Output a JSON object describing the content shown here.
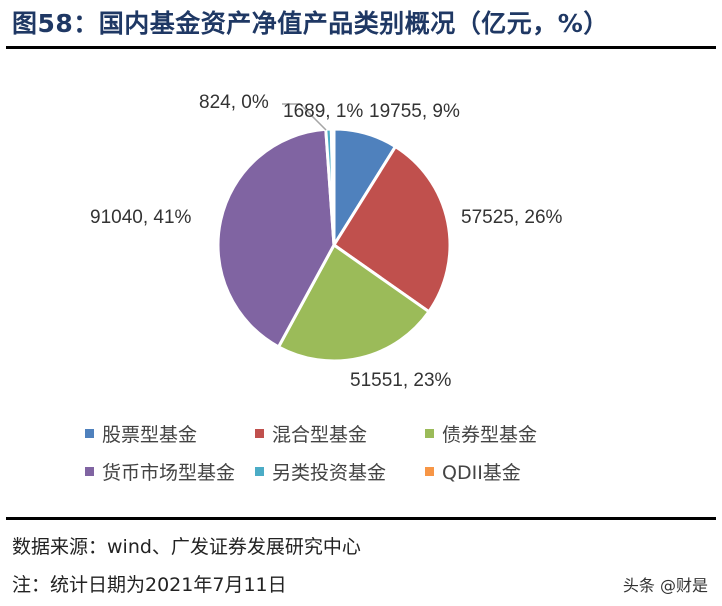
{
  "title": "图58：国内基金资产净值产品类别概况（亿元，%）",
  "source": "数据来源：wind、广发证券发展研究中心",
  "note": "注：统计日期为2021年7月11日",
  "watermark": "头条 @财是",
  "chart_data": {
    "type": "pie",
    "title": "国内基金资产净值产品类别概况（亿元，%）",
    "start_angle": "12 o'clock, clockwise",
    "categories": [
      "股票型基金",
      "混合型基金",
      "债券型基金",
      "货币市场型基金",
      "另类投资基金",
      "QDII基金"
    ],
    "values": [
      19755,
      57525,
      51551,
      91040,
      1689,
      824
    ],
    "percents": [
      9,
      26,
      23,
      41,
      1,
      0
    ],
    "colors": [
      "#4f81bd",
      "#c0504d",
      "#9bbb59",
      "#8064a2",
      "#4bacc6",
      "#f79646"
    ],
    "data_labels": [
      "19755, 9%",
      "57525, 26%",
      "51551, 23%",
      "91040, 41%",
      "1689, 1%",
      "824, 0%"
    ],
    "legend_position": "bottom",
    "unit": "亿元"
  },
  "legend": [
    {
      "label": "股票型基金",
      "color": "#4f81bd"
    },
    {
      "label": "混合型基金",
      "color": "#c0504d"
    },
    {
      "label": "债券型基金",
      "color": "#9bbb59"
    },
    {
      "label": "货币市场型基金",
      "color": "#8064a2"
    },
    {
      "label": "另类投资基金",
      "color": "#4bacc6"
    },
    {
      "label": "QDII基金",
      "color": "#f79646"
    }
  ]
}
